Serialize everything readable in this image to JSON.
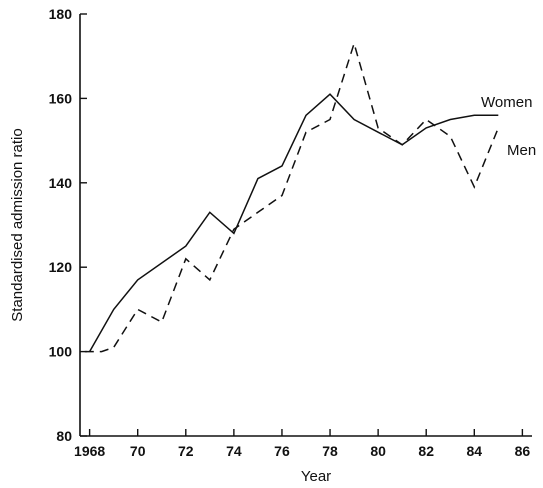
{
  "chart_data": {
    "type": "line",
    "title": "",
    "xlabel": "Year",
    "ylabel": "Standardised admission ratio",
    "xlim": [
      1967.6,
      1986.4
    ],
    "ylim": [
      80,
      180
    ],
    "x_ticks": [
      1968,
      1970,
      1972,
      1974,
      1976,
      1978,
      1980,
      1982,
      1984,
      1986
    ],
    "x_tick_labels": [
      "1968",
      "70",
      "72",
      "74",
      "76",
      "78",
      "80",
      "82",
      "84",
      "86"
    ],
    "y_ticks": [
      80,
      100,
      120,
      140,
      160,
      180
    ],
    "y_tick_labels": [
      "80",
      "100",
      "120",
      "140",
      "160",
      "180"
    ],
    "grid": false,
    "series": [
      {
        "name": "Women",
        "style": "solid",
        "x": [
          1968,
          1969,
          1970,
          1972,
          1973,
          1974,
          1975,
          1976,
          1977,
          1978,
          1979,
          1980,
          1981,
          1982,
          1983,
          1984,
          1985
        ],
        "values": [
          100,
          110,
          117,
          125,
          133,
          128,
          141,
          144,
          156,
          161,
          155,
          152,
          149,
          153,
          155,
          156,
          156
        ]
      },
      {
        "name": "Men",
        "style": "dashed",
        "x": [
          1967.8,
          1968.5,
          1969,
          1970,
          1971,
          1972,
          1973,
          1974,
          1975,
          1976,
          1977,
          1978,
          1979,
          1980,
          1981,
          1982,
          1983,
          1984,
          1985
        ],
        "values": [
          100,
          100,
          101,
          110,
          107,
          122,
          117,
          129,
          133,
          137,
          152,
          155,
          173,
          153,
          149,
          155,
          151,
          139,
          153
        ]
      }
    ]
  }
}
